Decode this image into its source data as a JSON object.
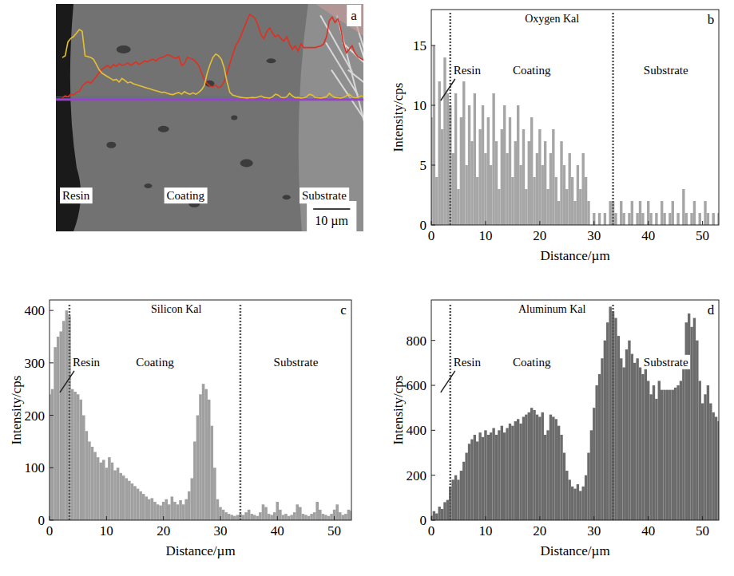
{
  "chart_data": [
    {
      "type": "image",
      "panel_label": "a",
      "annotations": [
        "Resin",
        "Coating",
        "Substrate"
      ],
      "scale_bar": "10 µm"
    },
    {
      "type": "bar",
      "panel_label": "b",
      "title": "Oxygen Kal",
      "x_label": "Distance/µm",
      "y_label": "Intensity/cps",
      "color": "#a6a6a6",
      "xlim": [
        0,
        53
      ],
      "xticks": [
        0,
        10,
        20,
        30,
        40,
        50
      ],
      "ylim": [
        0,
        18
      ],
      "yticks": [
        0,
        5,
        10,
        15
      ],
      "annotations": [
        "Resin",
        "Coating",
        "Substrate"
      ],
      "boundaries": [
        3.5,
        33.5
      ],
      "x": [
        0,
        0.5,
        1,
        1.5,
        2,
        2.5,
        3,
        3.5,
        4,
        4.5,
        5,
        5.5,
        6,
        6.5,
        7,
        7.5,
        8,
        8.5,
        9,
        9.5,
        10,
        10.5,
        11,
        11.5,
        12,
        12.5,
        13,
        13.5,
        14,
        14.5,
        15,
        15.5,
        16,
        16.5,
        17,
        17.5,
        18,
        18.5,
        19,
        19.5,
        20,
        20.5,
        21,
        21.5,
        22,
        22.5,
        23,
        23.5,
        24,
        24.5,
        25,
        25.5,
        26,
        26.5,
        27,
        27.5,
        28,
        28.5,
        29,
        29.5,
        30,
        30.5,
        31,
        31.5,
        32,
        32.5,
        33,
        33.5,
        34,
        34.5,
        35,
        35.5,
        36,
        36.5,
        37,
        37.5,
        38,
        38.5,
        39,
        39.5,
        40,
        40.5,
        41,
        41.5,
        42,
        42.5,
        43,
        43.5,
        44,
        44.5,
        45,
        45.5,
        46,
        46.5,
        47,
        47.5,
        48,
        48.5,
        49,
        49.5,
        50,
        50.5,
        51,
        51.5,
        52,
        52.5,
        53
      ],
      "values": [
        9,
        15,
        4,
        12,
        8,
        14,
        11,
        10,
        6,
        11,
        3,
        9,
        12,
        5,
        10,
        7,
        11,
        4,
        8,
        10,
        6,
        9,
        5,
        11,
        7,
        3,
        8,
        10,
        6,
        9,
        4,
        7,
        10,
        5,
        8,
        3,
        7,
        9,
        4,
        6,
        8,
        5,
        7,
        3,
        6,
        8,
        4,
        2,
        7,
        5,
        3,
        6,
        4,
        2,
        5,
        3,
        6,
        4,
        2,
        0,
        1,
        0,
        1,
        0,
        1,
        0,
        2,
        2,
        1,
        0,
        2,
        1,
        0,
        1,
        2,
        0,
        1,
        2,
        1,
        0,
        2,
        1,
        0,
        1,
        0,
        2,
        1,
        0,
        1,
        2,
        0,
        1,
        0,
        3,
        1,
        0,
        1,
        2,
        0,
        1,
        0,
        2,
        1,
        0,
        1,
        0,
        1
      ]
    },
    {
      "type": "bar",
      "panel_label": "c",
      "title": "Silicon Kal",
      "x_label": "Distance/µm",
      "y_label": "Intensity/cps",
      "color": "#a0a0a0",
      "xlim": [
        0,
        53
      ],
      "xticks": [
        0,
        10,
        20,
        30,
        40,
        50
      ],
      "ylim": [
        0,
        420
      ],
      "yticks": [
        0,
        100,
        200,
        300,
        400
      ],
      "annotations": [
        "Resin",
        "Coating",
        "Substrate"
      ],
      "boundaries": [
        3.5,
        33.5
      ],
      "x": [
        0,
        0.5,
        1,
        1.5,
        2,
        2.5,
        3,
        3.5,
        4,
        4.5,
        5,
        5.5,
        6,
        6.5,
        7,
        7.5,
        8,
        8.5,
        9,
        9.5,
        10,
        10.5,
        11,
        11.5,
        12,
        12.5,
        13,
        13.5,
        14,
        14.5,
        15,
        15.5,
        16,
        16.5,
        17,
        17.5,
        18,
        18.5,
        19,
        19.5,
        20,
        20.5,
        21,
        21.5,
        22,
        22.5,
        23,
        23.5,
        24,
        24.5,
        25,
        25.5,
        26,
        26.5,
        27,
        27.5,
        28,
        28.5,
        29,
        29.5,
        30,
        30.5,
        31,
        31.5,
        32,
        32.5,
        33,
        33.5,
        34,
        34.5,
        35,
        35.5,
        36,
        36.5,
        37,
        37.5,
        38,
        38.5,
        39,
        39.5,
        40,
        40.5,
        41,
        41.5,
        42,
        42.5,
        43,
        43.5,
        44,
        44.5,
        45,
        45.5,
        46,
        46.5,
        47,
        47.5,
        48,
        48.5,
        49,
        49.5,
        50,
        50.5,
        51,
        51.5,
        52,
        52.5,
        53
      ],
      "values": [
        240,
        250,
        330,
        350,
        360,
        380,
        400,
        390,
        250,
        245,
        240,
        230,
        200,
        170,
        150,
        140,
        130,
        120,
        110,
        115,
        100,
        120,
        110,
        95,
        100,
        90,
        85,
        80,
        75,
        70,
        65,
        60,
        55,
        50,
        45,
        40,
        42,
        35,
        30,
        28,
        35,
        40,
        30,
        45,
        35,
        30,
        38,
        30,
        40,
        55,
        80,
        150,
        200,
        240,
        260,
        250,
        230,
        180,
        100,
        40,
        25,
        20,
        15,
        12,
        10,
        8,
        10,
        12,
        10,
        15,
        20,
        12,
        10,
        8,
        15,
        30,
        25,
        12,
        10,
        15,
        35,
        20,
        10,
        12,
        8,
        10,
        15,
        30,
        25,
        12,
        10,
        8,
        12,
        15,
        35,
        20,
        12,
        10,
        8,
        12,
        20,
        30,
        15,
        10,
        12,
        20,
        18
      ]
    },
    {
      "type": "bar",
      "panel_label": "d",
      "title": "Aluminum Kal",
      "x_label": "Distance/µm",
      "y_label": "Intensity/cps",
      "color": "#6b6b6b",
      "xlim": [
        0,
        53
      ],
      "xticks": [
        0,
        10,
        20,
        30,
        40,
        50
      ],
      "ylim": [
        0,
        980
      ],
      "yticks": [
        0,
        200,
        400,
        600,
        800
      ],
      "annotations": [
        "Resin",
        "Coating",
        "Substrate"
      ],
      "boundaries": [
        3.5,
        33.5
      ],
      "x": [
        0,
        0.5,
        1,
        1.5,
        2,
        2.5,
        3,
        3.5,
        4,
        4.5,
        5,
        5.5,
        6,
        6.5,
        7,
        7.5,
        8,
        8.5,
        9,
        9.5,
        10,
        10.5,
        11,
        11.5,
        12,
        12.5,
        13,
        13.5,
        14,
        14.5,
        15,
        15.5,
        16,
        16.5,
        17,
        17.5,
        18,
        18.5,
        19,
        19.5,
        20,
        20.5,
        21,
        21.5,
        22,
        22.5,
        23,
        23.5,
        24,
        24.5,
        25,
        25.5,
        26,
        26.5,
        27,
        27.5,
        28,
        28.5,
        29,
        29.5,
        30,
        30.5,
        31,
        31.5,
        32,
        32.5,
        33,
        33.5,
        34,
        34.5,
        35,
        35.5,
        36,
        36.5,
        37,
        37.5,
        38,
        38.5,
        39,
        39.5,
        40,
        40.5,
        41,
        41.5,
        42,
        42.5,
        43,
        43.5,
        44,
        44.5,
        45,
        45.5,
        46,
        46.5,
        47,
        47.5,
        48,
        48.5,
        49,
        49.5,
        50,
        50.5,
        51,
        51.5,
        52,
        52.5,
        53
      ],
      "values": [
        20,
        40,
        30,
        60,
        50,
        80,
        90,
        150,
        180,
        200,
        180,
        220,
        260,
        300,
        340,
        360,
        380,
        350,
        390,
        370,
        400,
        380,
        390,
        410,
        380,
        400,
        420,
        390,
        410,
        430,
        420,
        440,
        450,
        430,
        460,
        470,
        480,
        500,
        490,
        470,
        460,
        480,
        380,
        400,
        470,
        460,
        450,
        420,
        380,
        300,
        220,
        180,
        150,
        140,
        160,
        130,
        150,
        200,
        300,
        400,
        500,
        600,
        650,
        720,
        800,
        880,
        950,
        930,
        900,
        820,
        720,
        680,
        760,
        800,
        740,
        700,
        720,
        680,
        650,
        700,
        620,
        560,
        600,
        540,
        620,
        580,
        580,
        580,
        580,
        580,
        590,
        600,
        620,
        700,
        880,
        920,
        860,
        900,
        800,
        620,
        520,
        560,
        600,
        520,
        480,
        460,
        440
      ]
    }
  ]
}
